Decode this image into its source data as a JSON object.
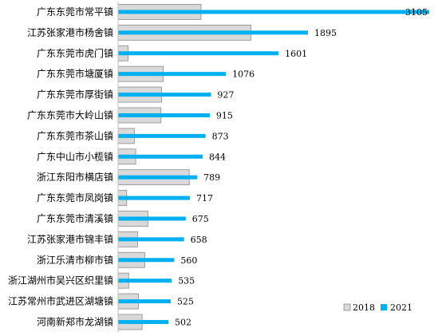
{
  "chart_data": {
    "type": "bar",
    "orientation": "horizontal",
    "categories": [
      "广东东莞市常平镇",
      "江苏张家港市杨舍镇",
      "广东东莞市虎门镇",
      "广东东莞市塘厦镇",
      "广东东莞市厚街镇",
      "广东东莞市大岭山镇",
      "广东东莞市茶山镇",
      "广东中山市小榄镇",
      "浙江东阳市横店镇",
      "广东东莞市凤岗镇",
      "广东东莞市清溪镇",
      "江苏张家港市锦丰镇",
      "浙江乐清市柳市镇",
      "浙江湖州市吴兴区织里镇",
      "江苏常州市武进区湖塘镇",
      "河南新郑市龙湖镇"
    ],
    "series": [
      {
        "name": "2018",
        "color": "#d9d9d9",
        "values": [
          828,
          1325,
          100,
          452,
          434,
          428,
          163,
          176,
          710,
          86,
          298,
          194,
          266,
          106,
          204,
          240
        ]
      },
      {
        "name": "2021",
        "color": "#00b0f0",
        "values": [
          3105,
          1895,
          1601,
          1076,
          927,
          915,
          873,
          844,
          789,
          717,
          675,
          658,
          560,
          535,
          525,
          502
        ],
        "labels": [
          "3105",
          "1895",
          "1601",
          "1076",
          "927",
          "915",
          "873",
          "844",
          "789",
          "717",
          "675",
          "658",
          "560",
          "535",
          "525",
          "502"
        ]
      }
    ],
    "xlim": [
      0,
      3105
    ],
    "grid": false,
    "legend_position": "bottom-right"
  }
}
